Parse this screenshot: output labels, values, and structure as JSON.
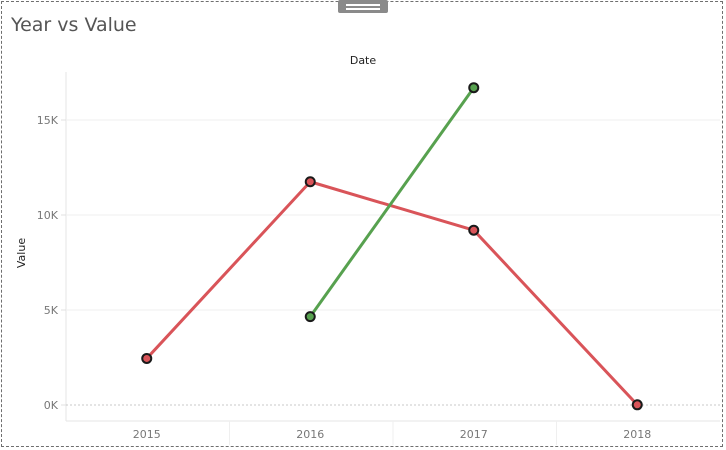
{
  "title": "Year vs Value",
  "chart_data": {
    "type": "line",
    "title": "Year vs Value",
    "x_header": "Date",
    "xlabel": "",
    "ylabel": "Value",
    "categories": [
      "2015",
      "2016",
      "2017",
      "2018"
    ],
    "ylim": [
      0,
      17500
    ],
    "yticks": [
      0,
      5000,
      10000,
      15000
    ],
    "ytick_labels": [
      "0K",
      "5K",
      "10K",
      "15K"
    ],
    "grid": true,
    "legend": "none",
    "series": [
      {
        "color": "#d95459",
        "values": [
          2450,
          11750,
          9200,
          10
        ]
      },
      {
        "color": "#57a14f",
        "values": [
          null,
          4650,
          16700,
          null
        ]
      }
    ]
  }
}
